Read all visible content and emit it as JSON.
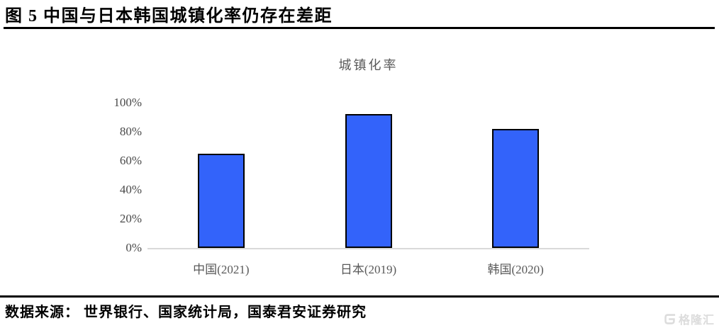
{
  "figure": {
    "title": "图 5 中国与日本韩国城镇化率仍存在差距",
    "source": "数据来源： 世界银行、国家统计局，国泰君安证券研究",
    "watermark": "格隆汇"
  },
  "chart_data": {
    "type": "bar",
    "title": "城镇化率",
    "categories": [
      "中国(2021)",
      "日本(2019)",
      "韩国(2020)"
    ],
    "values": [
      65,
      92,
      82
    ],
    "unit": "%",
    "xlabel": "",
    "ylabel": "",
    "ylim": [
      0,
      100
    ],
    "yticks": [
      0,
      20,
      40,
      60,
      80,
      100
    ],
    "ytick_labels": [
      "0%",
      "20%",
      "40%",
      "60%",
      "80%",
      "100%"
    ],
    "grid": false,
    "legend": false,
    "bar_color": "#3363fa",
    "bar_border_color": "#000000",
    "axis_line_color": "#d9d9d9",
    "label_color": "#595959"
  }
}
